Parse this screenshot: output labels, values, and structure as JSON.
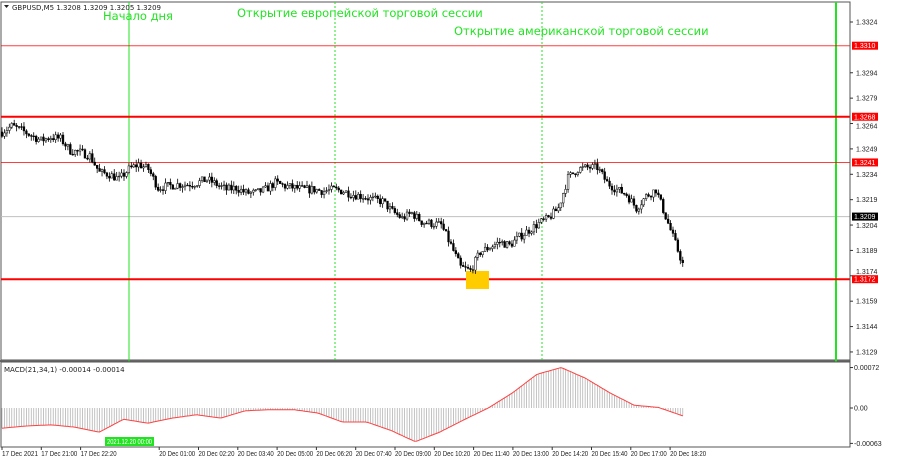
{
  "header": {
    "symbol_info": "GBPUSD,M5  1.3208 1.3209 1.3205 1.3209"
  },
  "macd_header": "MACD(21,34,1) -0.00014 -0.00014",
  "annotations": {
    "day_start": "Начало дня",
    "eu_session": "Открытие европейской торговой сессии",
    "us_session": "Открытие американской торговой сессии"
  },
  "colors": {
    "level": "#ff0000",
    "session_line": "#22e322",
    "highlight": "#ffcc00",
    "bid_line": "#c0c0c0",
    "candle": "#000000",
    "macd_hist": "#b4b4b4",
    "macd_signal": "#ff4040"
  },
  "chart_data": {
    "type": "candlestick",
    "symbol": "GBPUSD",
    "timeframe": "M5",
    "price_axis": {
      "min": 1.3129,
      "max": 1.3324,
      "ticks": [
        "1.3324",
        "1.3294",
        "1.3279",
        "1.3264",
        "1.3249",
        "1.3234",
        "1.3219",
        "1.3204",
        "1.3189",
        "1.3174",
        "1.3159",
        "1.3144",
        "1.3129"
      ]
    },
    "levels": [
      {
        "price": "1.3310",
        "weight": "thin"
      },
      {
        "price": "1.3268",
        "weight": "thick"
      },
      {
        "price": "1.3241",
        "weight": "thin"
      },
      {
        "price": "1.3172",
        "weight": "thick"
      }
    ],
    "current_price": "1.3209",
    "close_path_20min": [
      1.3259,
      1.32625,
      1.326,
      1.3257,
      1.3254,
      1.3256,
      1.3255,
      1.3248,
      1.3247,
      1.3245,
      1.3235,
      1.3234,
      1.3231,
      1.3237,
      1.324,
      1.3237,
      1.3226,
      1.3227,
      1.3228,
      1.3228,
      1.3229,
      1.3231,
      1.3228,
      1.3225,
      1.3226,
      1.3223,
      1.3223,
      1.3225,
      1.3229,
      1.3227,
      1.3226,
      1.3225,
      1.3225,
      1.3224,
      1.3225,
      1.3224,
      1.3222,
      1.3221,
      1.3219,
      1.3218,
      1.3212,
      1.3208,
      1.3211,
      1.3206,
      1.3205,
      1.3204,
      1.3192,
      1.3179,
      1.3177,
      1.3188,
      1.3191,
      1.3194,
      1.3192,
      1.3197,
      1.3201,
      1.3205,
      1.3208,
      1.3214,
      1.3232,
      1.3237,
      1.3238,
      1.3238,
      1.3229,
      1.3225,
      1.3222,
      1.3214,
      1.3221,
      1.3225,
      1.3209
    ],
    "macd_axis": {
      "ticks": [
        "0.00072",
        "0.00",
        "-0.00063"
      ],
      "min": -0.00063,
      "max": 0.00072
    },
    "macd_path": [
      -0.00036,
      -0.00032,
      -0.0003,
      -0.00034,
      -0.00043,
      -0.0002,
      -0.00027,
      -0.00018,
      -0.00012,
      -0.00018,
      -5e-05,
      -3e-05,
      -3e-05,
      -9e-05,
      -0.00025,
      -0.00025,
      -0.0004,
      -0.0006,
      -0.00043,
      -0.00021,
      0.0,
      0.00027,
      0.0006,
      0.00072,
      0.00053,
      0.00027,
      5e-05,
      1e-05,
      -0.00014
    ],
    "time_labels": [
      "17 Dec 2021",
      "17 Dec 21:00",
      "17 Dec 22:20",
      "2021.12.20 00:00",
      "20 Dec 01:00",
      "20 Dec 02:20",
      "20 Dec 03:40",
      "20 Dec 05:00",
      "20 Dec 06:20",
      "20 Dec 07:40",
      "20 Dec 09:00",
      "20 Dec 10:20",
      "20 Dec 11:40",
      "20 Dec 13:00",
      "20 Dec 14:20",
      "20 Dec 15:40",
      "20 Dec 17:00",
      "20 Dec 18:20"
    ],
    "highlighted_time": "2021.12.20 00:00"
  }
}
